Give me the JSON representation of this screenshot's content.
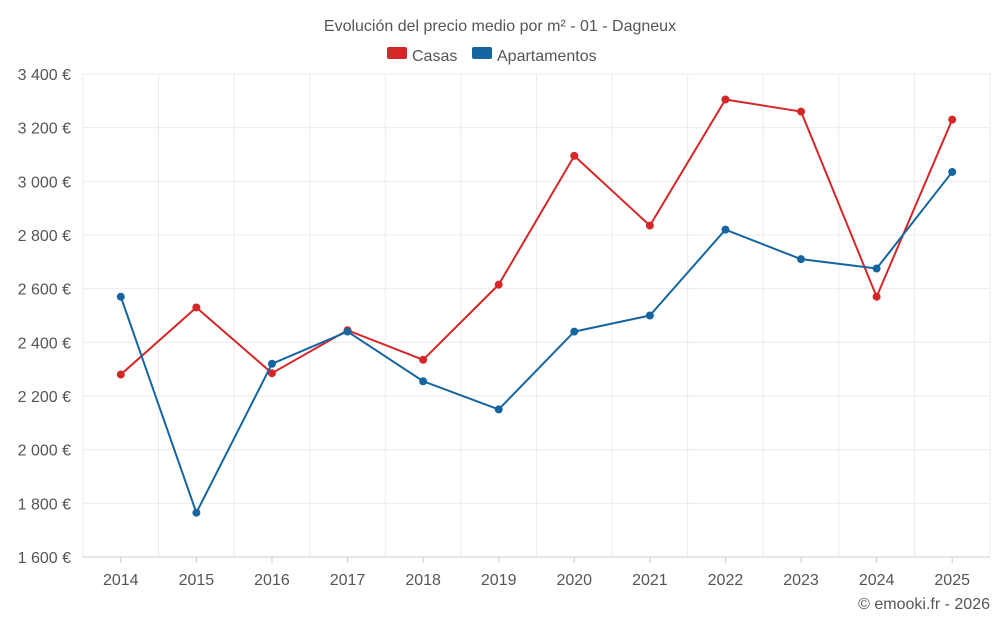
{
  "chart_data": {
    "type": "line",
    "title": "Evolución del precio medio por m² - 01 - Dagneux",
    "categories": [
      "2014",
      "2015",
      "2016",
      "2017",
      "2018",
      "2019",
      "2020",
      "2021",
      "2022",
      "2023",
      "2024",
      "2025"
    ],
    "series": [
      {
        "name": "Casas",
        "color": "#d62728",
        "values": [
          2280,
          2530,
          2285,
          2445,
          2335,
          2615,
          3095,
          2835,
          3305,
          3260,
          2570,
          3230
        ]
      },
      {
        "name": "Apartamentos",
        "color": "#1565a0",
        "values": [
          2570,
          1765,
          2320,
          2440,
          2255,
          2150,
          2440,
          2500,
          2820,
          2710,
          2675,
          3035
        ]
      }
    ],
    "ylim": [
      1600,
      3400
    ],
    "yticks": [
      1600,
      1800,
      2000,
      2200,
      2400,
      2600,
      2800,
      3000,
      3200,
      3400
    ],
    "ytick_labels": [
      "1 600 €",
      "1 800 €",
      "2 000 €",
      "2 200 €",
      "2 400 €",
      "2 600 €",
      "2 800 €",
      "3 000 €",
      "3 200 €",
      "3 400 €"
    ],
    "xlabel": "",
    "ylabel": "",
    "legend_position": "top-center",
    "grid": true
  },
  "credit": "© emooki.fr - 2026"
}
